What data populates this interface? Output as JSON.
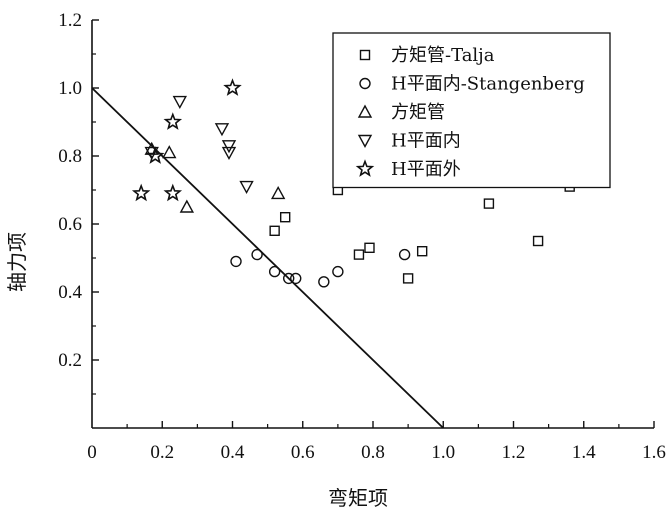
{
  "chart_data": {
    "type": "scatter",
    "title": "",
    "xlabel": "弯矩项",
    "ylabel": "轴力项",
    "xlim": [
      0,
      1.6
    ],
    "ylim": [
      0,
      1.2
    ],
    "xticks": [
      "0",
      "0.2",
      "0.4",
      "0.6",
      "0.8",
      "1.0",
      "1.2",
      "1.4",
      "1.6"
    ],
    "yticks": [
      "0.2",
      "0.4",
      "0.6",
      "0.8",
      "1.0",
      "1.2"
    ],
    "grid": false,
    "legend_position": "top-right",
    "reference_line": {
      "x": [
        0,
        1.0
      ],
      "y": [
        1.0,
        0
      ]
    },
    "series": [
      {
        "name": "方矩管-Talja",
        "marker": "square",
        "x": [
          0.52,
          0.55,
          0.7,
          0.76,
          0.79,
          0.9,
          0.94,
          1.13,
          1.27,
          1.36
        ],
        "y": [
          0.58,
          0.62,
          0.7,
          0.51,
          0.53,
          0.44,
          0.52,
          0.66,
          0.55,
          0.71
        ]
      },
      {
        "name": "H平面内-Stangenberg",
        "marker": "circle",
        "x": [
          0.41,
          0.47,
          0.52,
          0.56,
          0.58,
          0.66,
          0.7,
          0.89
        ],
        "y": [
          0.49,
          0.51,
          0.46,
          0.44,
          0.44,
          0.43,
          0.46,
          0.51
        ]
      },
      {
        "name": "方矩管",
        "marker": "triangle-up",
        "x": [
          0.17,
          0.22,
          0.27,
          0.53
        ],
        "y": [
          0.82,
          0.81,
          0.65,
          0.69
        ]
      },
      {
        "name": "H平面内",
        "marker": "triangle-down",
        "x": [
          0.17,
          0.25,
          0.37,
          0.39,
          0.39,
          0.44
        ],
        "y": [
          0.81,
          0.96,
          0.88,
          0.83,
          0.81,
          0.71
        ]
      },
      {
        "name": "H平面外",
        "marker": "star",
        "x": [
          0.14,
          0.18,
          0.23,
          0.23,
          0.4
        ],
        "y": [
          0.69,
          0.8,
          0.9,
          0.69,
          1.0
        ]
      }
    ]
  }
}
